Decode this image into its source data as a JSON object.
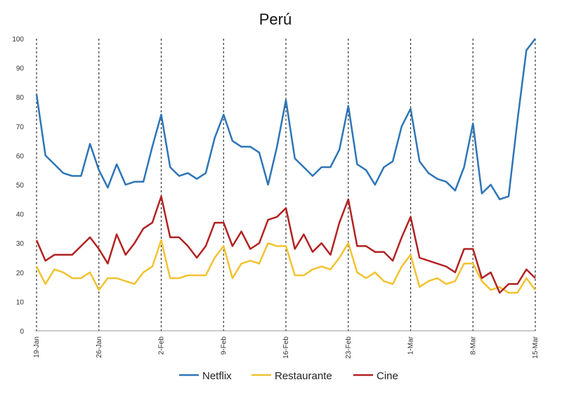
{
  "chart_data": {
    "type": "line",
    "title": "Perú",
    "xlabel": "",
    "ylabel": "",
    "ylim": [
      0,
      100
    ],
    "yticks": [
      "0",
      "10",
      "20",
      "30",
      "40",
      "50",
      "60",
      "70",
      "80",
      "90",
      "100"
    ],
    "xticks": [
      "19-Jan",
      "26-Jan",
      "2-Feb",
      "9-Feb",
      "16-Feb",
      "23-Feb",
      "1-Mar",
      "8-Mar",
      "15-Mar"
    ],
    "legend_position": "bottom",
    "n_points": 57,
    "series": [
      {
        "name": "Netflix",
        "color": "#2e75b6",
        "values": [
          81,
          60,
          57,
          54,
          53,
          53,
          64,
          55,
          49,
          57,
          50,
          51,
          51,
          63,
          74,
          56,
          53,
          54,
          52,
          54,
          66,
          74,
          65,
          63,
          63,
          61,
          50,
          63,
          79,
          59,
          56,
          53,
          56,
          56,
          62,
          77,
          57,
          55,
          50,
          56,
          58,
          70,
          76,
          58,
          54,
          52,
          51,
          48,
          56,
          71,
          47,
          50,
          45,
          46,
          72,
          96,
          100
        ]
      },
      {
        "name": "Restaurante",
        "color": "#f2c230",
        "values": [
          22,
          16,
          21,
          20,
          18,
          18,
          20,
          14,
          18,
          18,
          17,
          16,
          20,
          22,
          31,
          18,
          18,
          19,
          19,
          19,
          25,
          29,
          18,
          23,
          24,
          23,
          30,
          29,
          29,
          19,
          19,
          21,
          22,
          21,
          25,
          30,
          20,
          18,
          20,
          17,
          16,
          22,
          26,
          15,
          17,
          18,
          16,
          17,
          23,
          23,
          17,
          14,
          15,
          13,
          13,
          18,
          14
        ]
      },
      {
        "name": "Cine",
        "color": "#b22222",
        "values": [
          31,
          24,
          26,
          26,
          26,
          29,
          32,
          28,
          23,
          33,
          26,
          30,
          35,
          37,
          46,
          32,
          32,
          29,
          25,
          29,
          37,
          37,
          29,
          34,
          28,
          30,
          38,
          39,
          42,
          28,
          33,
          27,
          30,
          26,
          37,
          45,
          29,
          29,
          27,
          27,
          24,
          32,
          39,
          25,
          24,
          23,
          22,
          20,
          28,
          28,
          18,
          20,
          13,
          16,
          16,
          21,
          18
        ]
      }
    ]
  }
}
